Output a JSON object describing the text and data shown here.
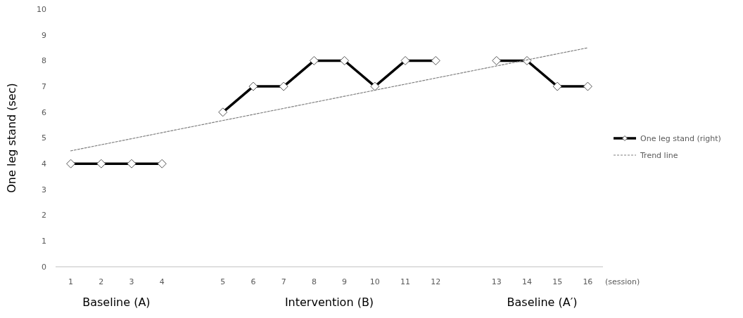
{
  "chart_data": {
    "type": "line",
    "ylabel": "One leg stand (sec)",
    "xlabel": "(session)",
    "categories": [
      "1",
      "2",
      "3",
      "4",
      null,
      "5",
      "6",
      "7",
      "8",
      "9",
      "10",
      "11",
      "12",
      null,
      "13",
      "14",
      "15",
      "16"
    ],
    "series": [
      {
        "name": "One leg stand (right)",
        "color": "#000000",
        "marker": "diamond",
        "line_style": "solid",
        "values": [
          4,
          4,
          4,
          4,
          null,
          6,
          7,
          7,
          8,
          8,
          7,
          8,
          8,
          null,
          8,
          8,
          7,
          7
        ]
      },
      {
        "name": "Trend line",
        "color": "#808080",
        "marker": "none",
        "line_style": "dashed",
        "x": [
          "1",
          "16"
        ],
        "values": [
          4.5,
          8.5
        ]
      }
    ],
    "ylim": [
      0,
      10
    ],
    "yticks": [
      0,
      1,
      2,
      3,
      4,
      5,
      6,
      7,
      8,
      9,
      10
    ],
    "grid": false,
    "legend": "right",
    "annotations": [
      "Baseline (A)",
      "Intervention (B)",
      "Baseline (A′)"
    ]
  }
}
